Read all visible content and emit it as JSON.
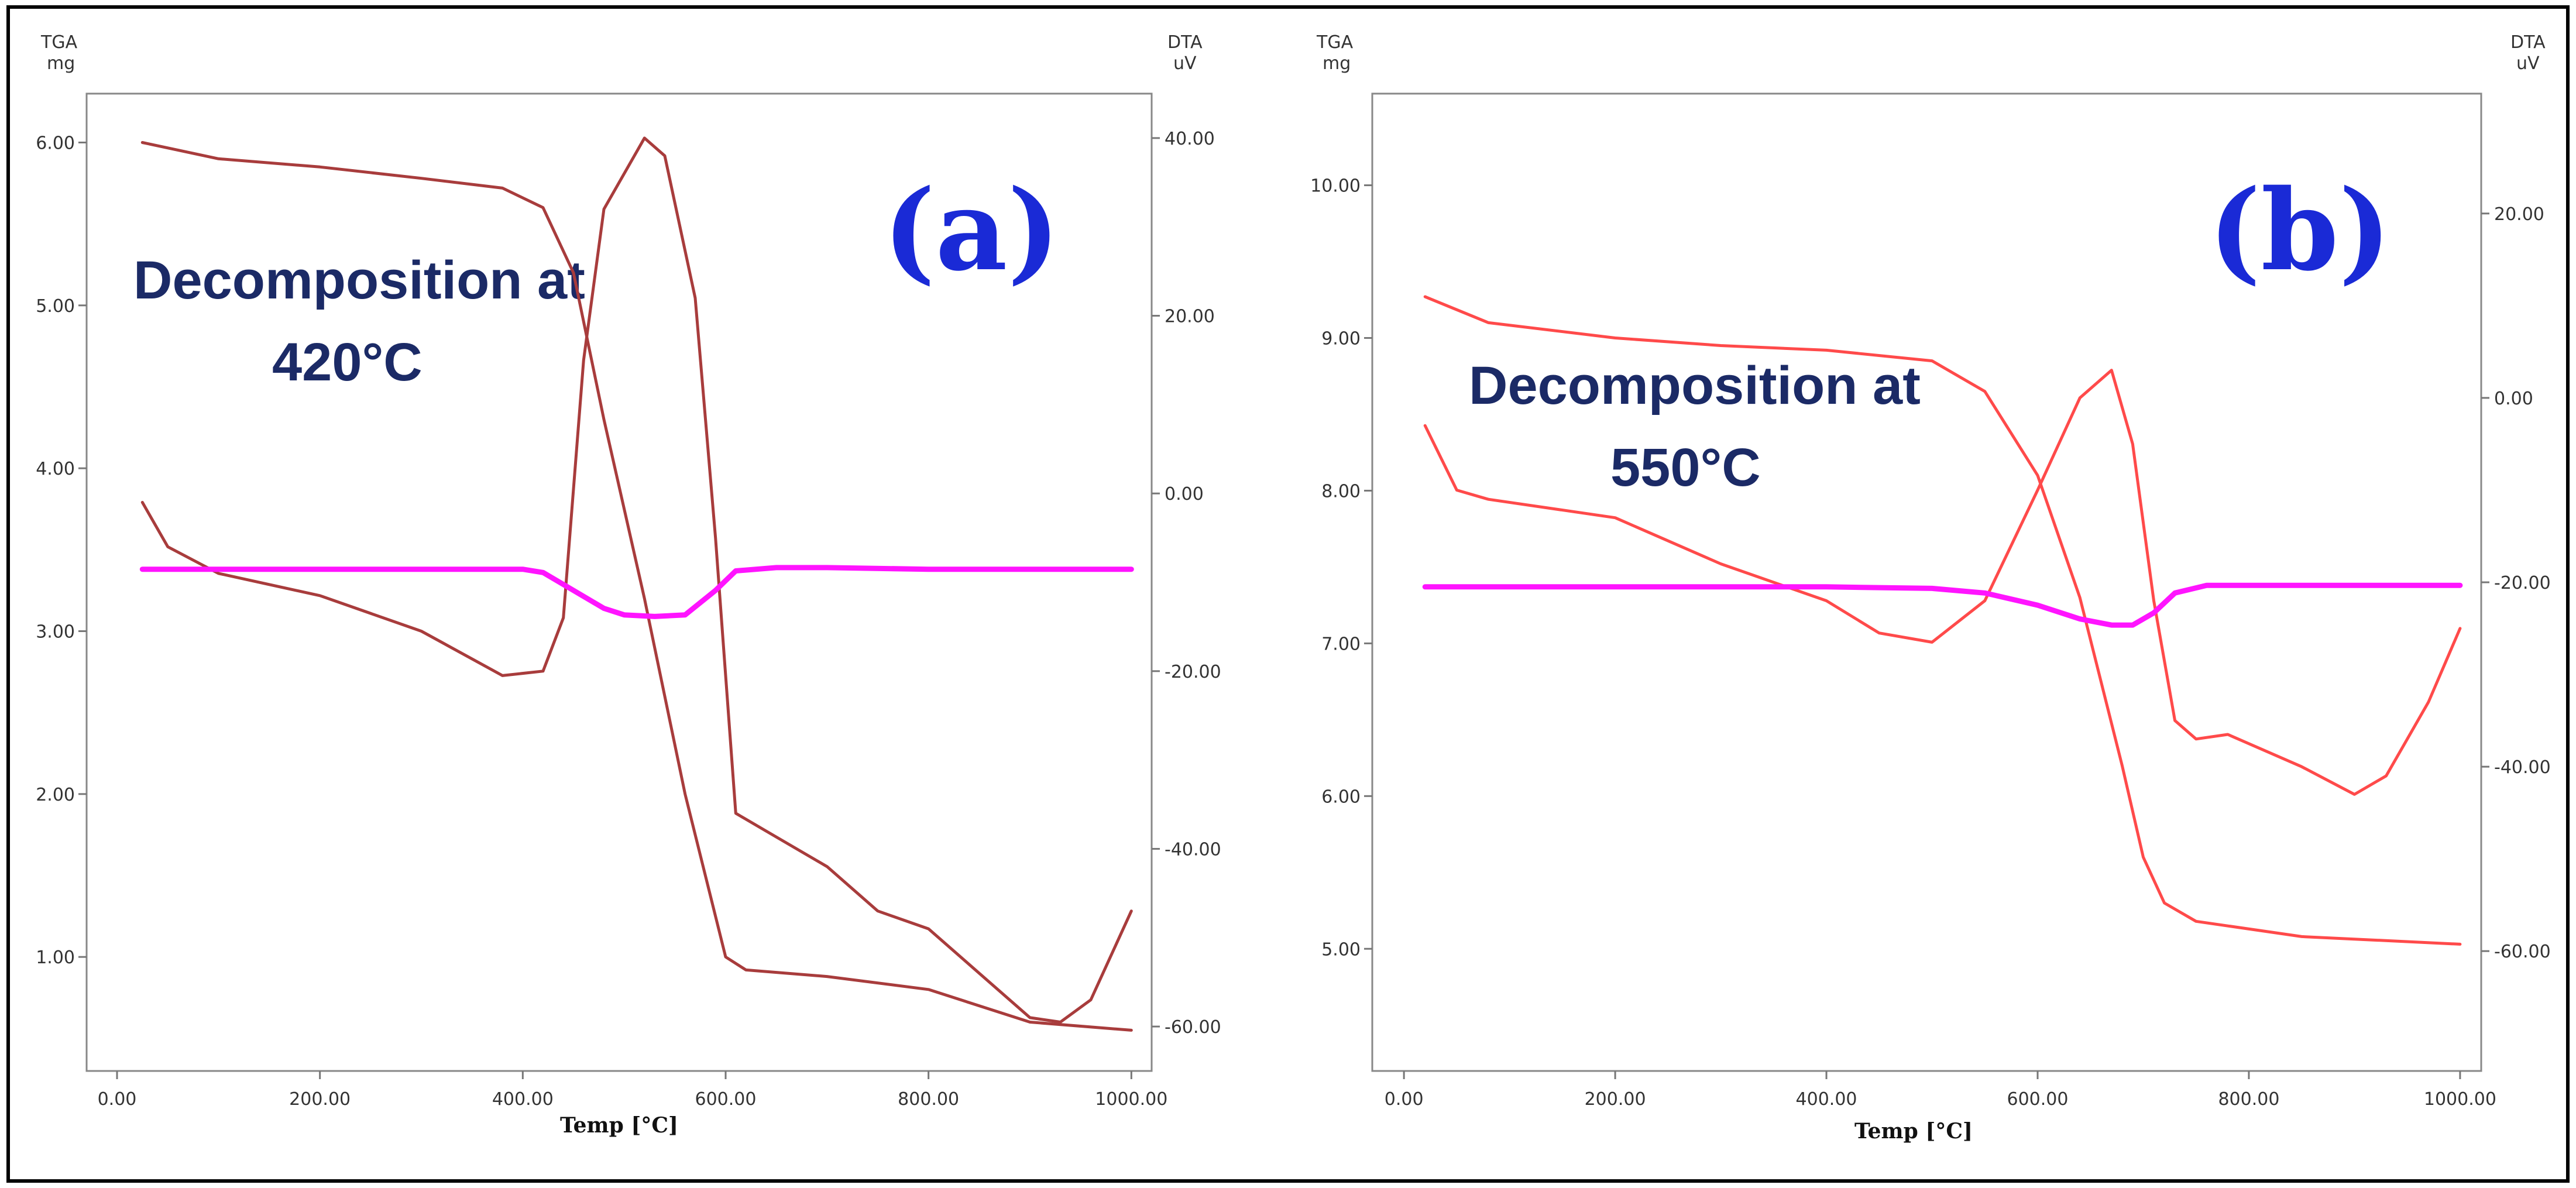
{
  "colors": {
    "frame": "#000000",
    "axis": "#777777",
    "panel_label": "#1a2ad6",
    "annotation": "#1b2a66",
    "tga_a": "#a83c3c",
    "dta_a": "#a83c3c",
    "baseline": "#ff14ff",
    "tga_b": "#ff4a4a",
    "dta_b": "#ff4a4a"
  },
  "chart_data": [
    {
      "type": "line",
      "panel_label": "(a)",
      "annotation": [
        "Decomposition at",
        "420°C"
      ],
      "y_left_title": "TGA",
      "y_left_unit": "mg",
      "y_right_title": "DTA",
      "y_right_unit": "uV",
      "xlabel": "Temp [°C]",
      "xlim": [
        -30,
        1020
      ],
      "x_ticks": [
        0,
        200,
        400,
        600,
        800,
        1000
      ],
      "x_tick_labels": [
        "0.00",
        "200.00",
        "400.00",
        "600.00",
        "800.00",
        "1000.00"
      ],
      "ylim_left": [
        0.3,
        6.3
      ],
      "y_left_ticks": [
        1,
        2,
        3,
        4,
        5,
        6
      ],
      "y_left_tick_labels": [
        "1.00",
        "2.00",
        "3.00",
        "4.00",
        "5.00",
        "6.00"
      ],
      "ylim_right": [
        -65,
        45
      ],
      "y_right_ticks": [
        -60,
        -40,
        -20,
        0,
        20,
        40
      ],
      "y_right_tick_labels": [
        "-60.00",
        "-40.00",
        "-20.00",
        "0.00",
        "20.00",
        "40.00"
      ],
      "series": [
        {
          "name": "TGA",
          "axis": "left",
          "color": "#a83c3c",
          "x": [
            25,
            100,
            200,
            300,
            380,
            420,
            450,
            480,
            520,
            560,
            600,
            620,
            700,
            800,
            900,
            1000
          ],
          "y": [
            6.0,
            5.9,
            5.85,
            5.78,
            5.72,
            5.6,
            5.2,
            4.3,
            3.2,
            2.0,
            1.0,
            0.92,
            0.88,
            0.8,
            0.6,
            0.55
          ]
        },
        {
          "name": "DTA",
          "axis": "right",
          "color": "#a83c3c",
          "x": [
            25,
            50,
            100,
            200,
            300,
            380,
            420,
            440,
            460,
            480,
            520,
            540,
            570,
            590,
            610,
            640,
            700,
            750,
            800,
            850,
            900,
            930,
            960,
            1000
          ],
          "y": [
            -1,
            -6,
            -9,
            -11.5,
            -15.5,
            -20.5,
            -20,
            -14,
            15,
            32,
            40,
            38,
            22,
            -5,
            -36,
            -38,
            -42,
            -47,
            -49,
            -54,
            -59,
            -59.5,
            -57,
            -47
          ]
        },
        {
          "name": "DTA baseline",
          "axis": "left",
          "color": "#ff14ff",
          "x": [
            25,
            100,
            200,
            300,
            400,
            420,
            450,
            480,
            500,
            530,
            560,
            590,
            610,
            650,
            700,
            800,
            900,
            1000
          ],
          "y": [
            3.38,
            3.38,
            3.38,
            3.38,
            3.38,
            3.36,
            3.25,
            3.14,
            3.1,
            3.09,
            3.1,
            3.25,
            3.37,
            3.39,
            3.39,
            3.38,
            3.38,
            3.38
          ]
        }
      ]
    },
    {
      "type": "line",
      "panel_label": "(b)",
      "annotation": [
        "Decomposition at",
        "550°C"
      ],
      "y_left_title": "TGA",
      "y_left_unit": "mg",
      "y_right_title": "DTA",
      "y_right_unit": "uV",
      "xlabel": "Temp [°C]",
      "xlim": [
        -30,
        1020
      ],
      "x_ticks": [
        0,
        200,
        400,
        600,
        800,
        1000
      ],
      "x_tick_labels": [
        "0.00",
        "200.00",
        "400.00",
        "600.00",
        "800.00",
        "1000.00"
      ],
      "ylim_left": [
        4.2,
        10.6
      ],
      "y_left_ticks": [
        5,
        6,
        7,
        8,
        9,
        10
      ],
      "y_left_tick_labels": [
        "5.00",
        "6.00",
        "7.00",
        "8.00",
        "9.00",
        "10.00"
      ],
      "ylim_right": [
        -73,
        33
      ],
      "y_right_ticks": [
        -60,
        -40,
        -20,
        0,
        20
      ],
      "y_right_tick_labels": [
        "-60.00",
        "-40.00",
        "-20.00",
        "0.00",
        "20.00"
      ],
      "series": [
        {
          "name": "TGA",
          "axis": "left",
          "color": "#ff4a4a",
          "x": [
            20,
            80,
            200,
            300,
            400,
            500,
            550,
            600,
            640,
            680,
            700,
            720,
            750,
            850,
            1000
          ],
          "y": [
            9.27,
            9.1,
            9.0,
            8.95,
            8.92,
            8.85,
            8.65,
            8.1,
            7.3,
            6.2,
            5.6,
            5.3,
            5.18,
            5.08,
            5.03
          ]
        },
        {
          "name": "DTA",
          "axis": "right",
          "color": "#ff4a4a",
          "x": [
            20,
            50,
            80,
            200,
            300,
            400,
            450,
            500,
            550,
            600,
            640,
            670,
            690,
            710,
            730,
            750,
            780,
            850,
            900,
            930,
            970,
            1000
          ],
          "y": [
            -3,
            -10,
            -11,
            -13,
            -18,
            -22,
            -25.5,
            -26.5,
            -22,
            -10,
            0,
            3,
            -5,
            -22,
            -35,
            -37,
            -36.5,
            -40,
            -43,
            -41,
            -33,
            -25
          ]
        },
        {
          "name": "DTA baseline",
          "axis": "left",
          "color": "#ff14ff",
          "x": [
            20,
            100,
            200,
            300,
            400,
            500,
            550,
            600,
            640,
            670,
            690,
            710,
            730,
            760,
            800,
            900,
            1000
          ],
          "y": [
            7.37,
            7.37,
            7.37,
            7.37,
            7.37,
            7.36,
            7.33,
            7.25,
            7.16,
            7.12,
            7.12,
            7.2,
            7.33,
            7.38,
            7.38,
            7.38,
            7.38
          ]
        }
      ]
    }
  ]
}
